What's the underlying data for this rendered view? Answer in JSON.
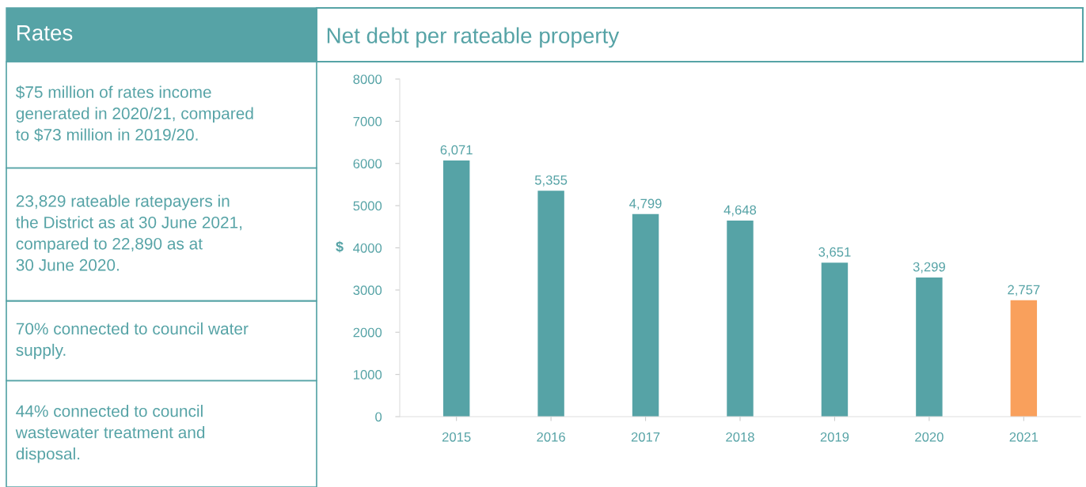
{
  "chart_data": [
    {
      "type": "other",
      "title": "Rates",
      "color": "#56a3a6",
      "annotations": [
        "$75 million of rates income\ngenerated in 2020/21, compared\nto $73 million in 2019/20.",
        "23,829 rateable ratepayers in\nthe District as at 30 June 2021,\ncompared to 22,890 as at\n30 June 2020.",
        "70% connected to council water\nsupply.",
        "44% connected to council\nwastewater treatment and\ndisposal."
      ]
    },
    {
      "type": "bar",
      "title": "Net debt per rateable property",
      "ylabel": "$",
      "categories": [
        "2015",
        "2016",
        "2017",
        "2018",
        "2019",
        "2020",
        "2021"
      ],
      "values": [
        6071,
        5355,
        4799,
        4648,
        3651,
        3299,
        2757
      ],
      "colors": [
        "#56a3a6",
        "#56a3a6",
        "#56a3a6",
        "#56a3a6",
        "#56a3a6",
        "#56a3a6",
        "#f9a05c"
      ],
      "data_labels": true,
      "value_labels": [
        "6,071",
        "5,355",
        "4,799",
        "4,648",
        "3,651",
        "3,299",
        "2,757"
      ],
      "ylim": [
        0,
        8000
      ],
      "yticks": [
        0,
        1000,
        2000,
        3000,
        4000,
        5000,
        6000,
        7000,
        8000
      ],
      "grid": false
    }
  ]
}
